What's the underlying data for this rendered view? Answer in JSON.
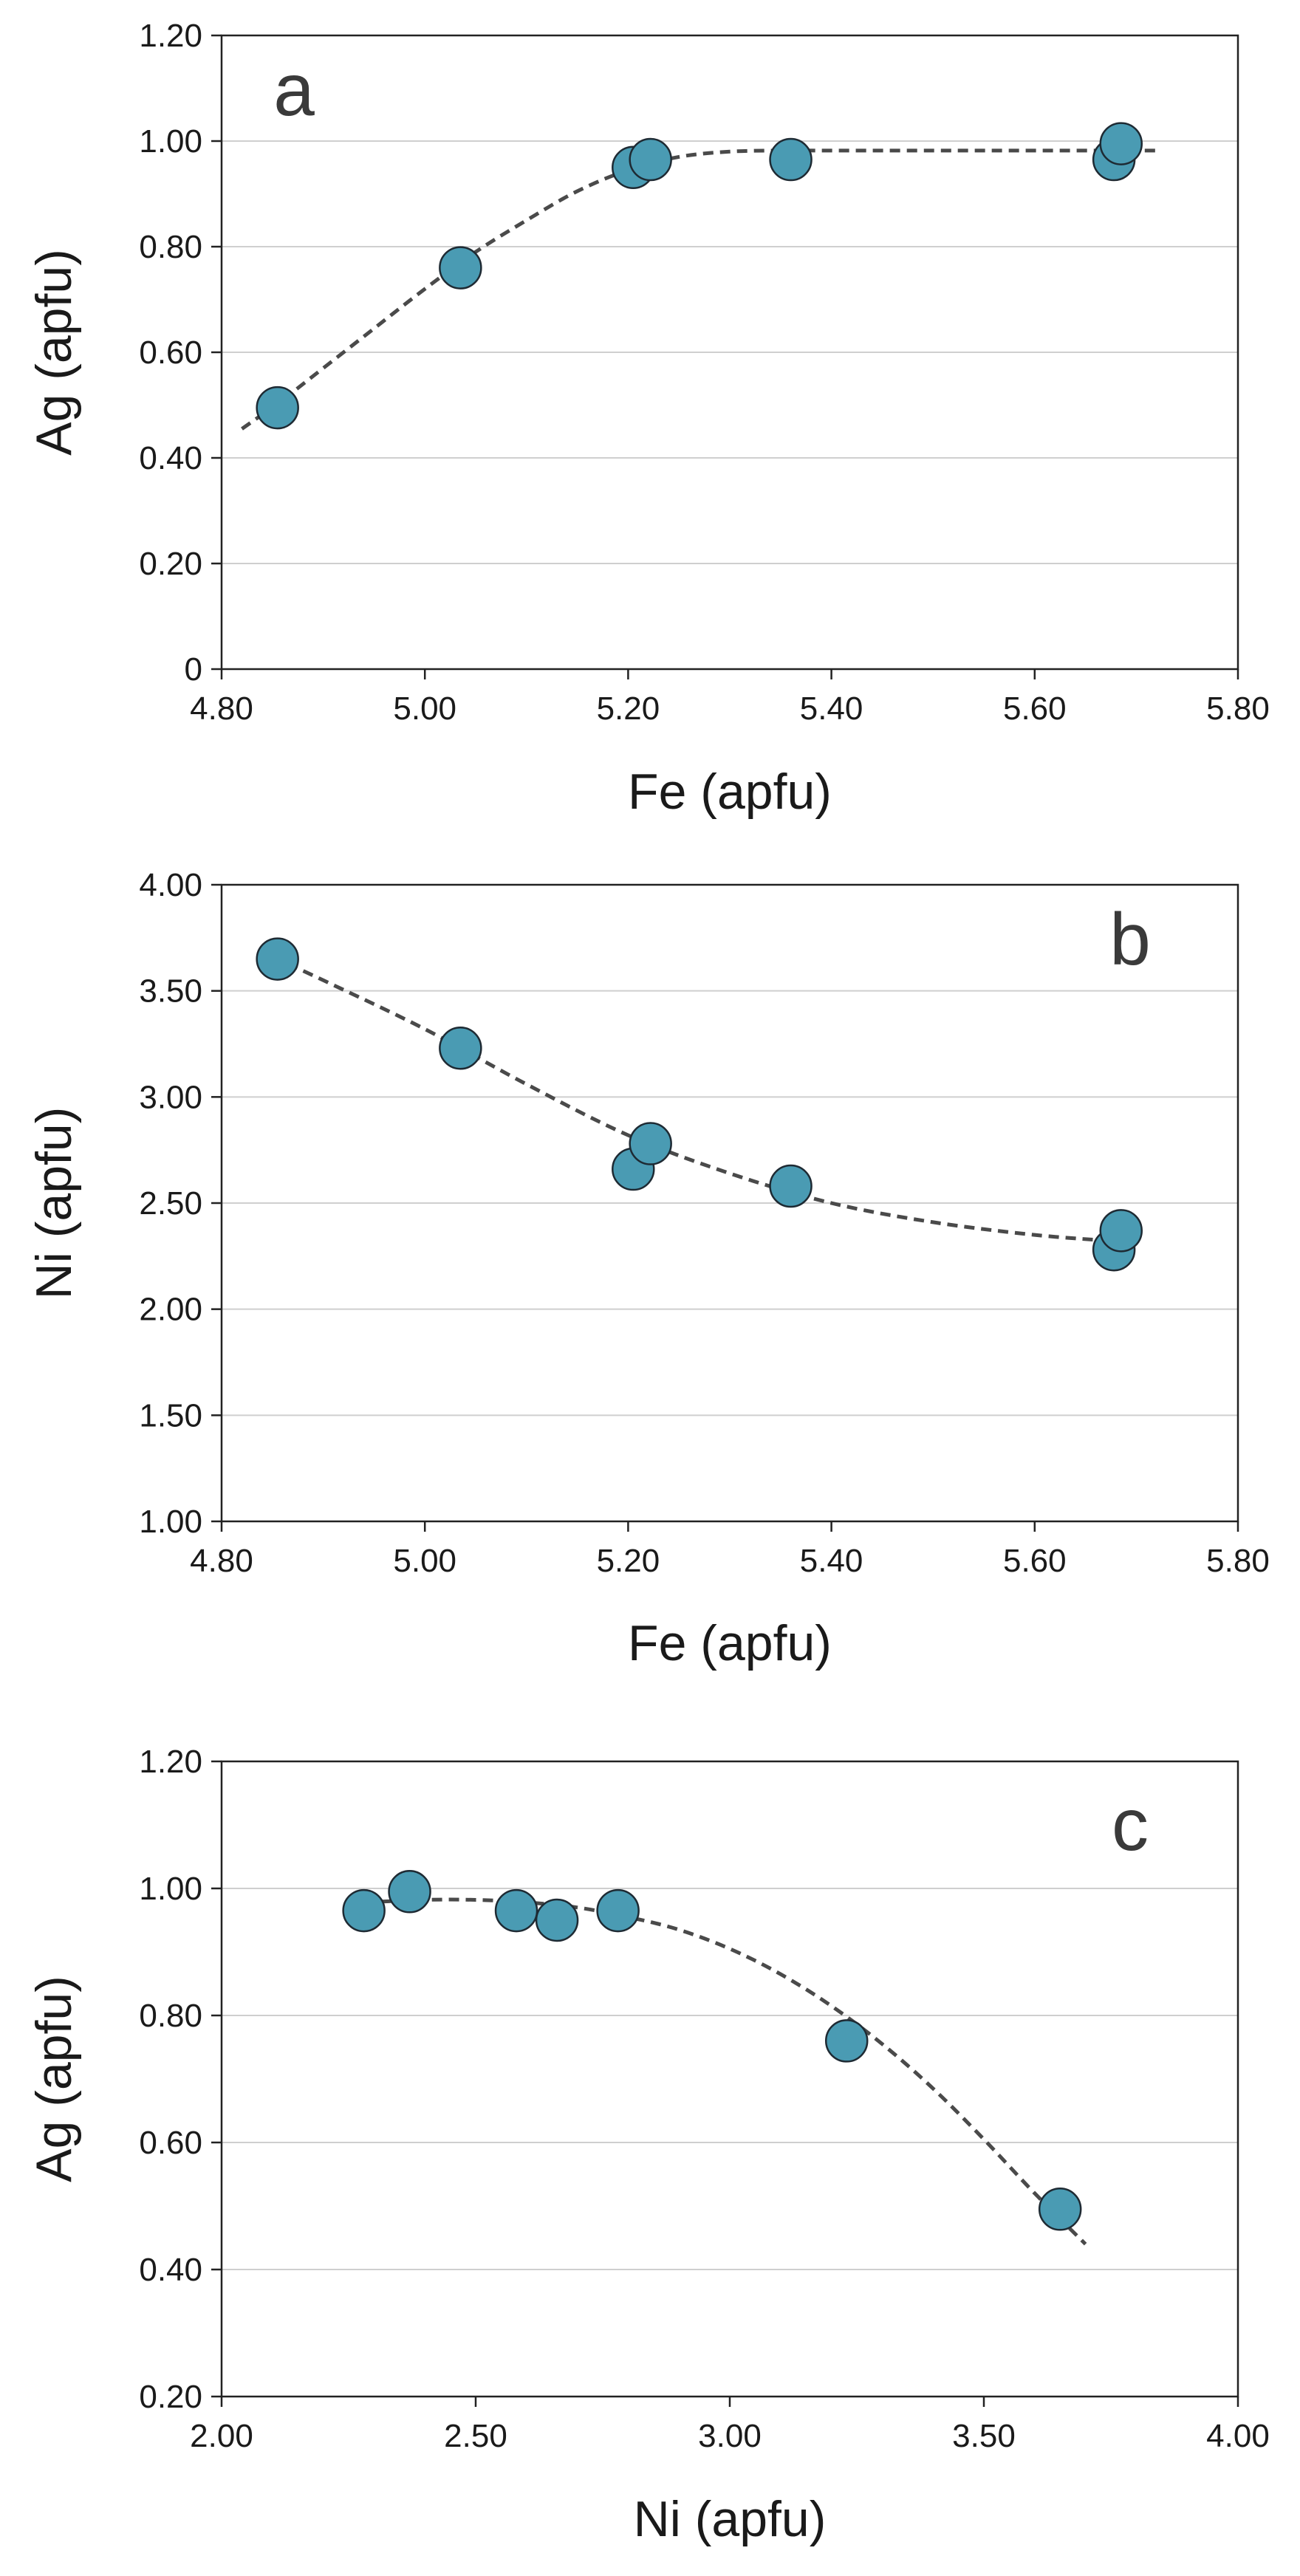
{
  "chart_data": [
    {
      "type": "scatter",
      "panel_label": "a",
      "xlabel": "Fe (apfu)",
      "ylabel": "Ag (apfu)",
      "xlim": [
        4.8,
        5.8
      ],
      "ylim": [
        0,
        1.2
      ],
      "x_ticks": [
        4.8,
        5.0,
        5.2,
        5.4,
        5.6,
        5.8
      ],
      "y_ticks": [
        0,
        0.2,
        0.4,
        0.6,
        0.8,
        1.0,
        1.2
      ],
      "x_tick_labels": [
        "4.80",
        "5.00",
        "5.20",
        "5.40",
        "5.60",
        "5.80"
      ],
      "y_tick_labels": [
        "0",
        "0.20",
        "0.40",
        "0.60",
        "0.80",
        "1.00",
        "1.20"
      ],
      "grid": "horizontal",
      "series": [
        {
          "name": "data",
          "x": [
            4.855,
            5.035,
            5.205,
            5.222,
            5.36,
            5.678,
            5.685
          ],
          "y": [
            0.495,
            0.76,
            0.95,
            0.965,
            0.965,
            0.965,
            0.995
          ]
        }
      ],
      "trendline": {
        "style": "dashed",
        "x": [
          4.82,
          4.86,
          4.9,
          4.95,
          5.0,
          5.05,
          5.1,
          5.15,
          5.2,
          5.25,
          5.3,
          5.35,
          5.4,
          5.5,
          5.6,
          5.72
        ],
        "y": [
          0.455,
          0.51,
          0.57,
          0.645,
          0.72,
          0.79,
          0.85,
          0.905,
          0.945,
          0.97,
          0.98,
          0.982,
          0.982,
          0.982,
          0.982,
          0.982
        ]
      }
    },
    {
      "type": "scatter",
      "panel_label": "b",
      "xlabel": "Fe (apfu)",
      "ylabel": "Ni (apfu)",
      "xlim": [
        4.8,
        5.8
      ],
      "ylim": [
        1.0,
        4.0
      ],
      "x_ticks": [
        4.8,
        5.0,
        5.2,
        5.4,
        5.6,
        5.8
      ],
      "y_ticks": [
        1.0,
        1.5,
        2.0,
        2.5,
        3.0,
        3.5,
        4.0
      ],
      "x_tick_labels": [
        "4.80",
        "5.00",
        "5.20",
        "5.40",
        "5.60",
        "5.80"
      ],
      "y_tick_labels": [
        "1.00",
        "1.50",
        "2.00",
        "2.50",
        "3.00",
        "3.50",
        "4.00"
      ],
      "grid": "horizontal",
      "series": [
        {
          "name": "data",
          "x": [
            4.855,
            5.035,
            5.205,
            5.222,
            5.36,
            5.678,
            5.685
          ],
          "y": [
            3.65,
            3.23,
            2.66,
            2.78,
            2.58,
            2.28,
            2.37
          ]
        }
      ],
      "trendline": {
        "style": "dashed",
        "x": [
          4.85,
          4.9,
          5.0,
          5.1,
          5.2,
          5.3,
          5.4,
          5.5,
          5.6,
          5.68
        ],
        "y": [
          3.66,
          3.55,
          3.32,
          3.06,
          2.82,
          2.64,
          2.5,
          2.41,
          2.35,
          2.32
        ]
      }
    },
    {
      "type": "scatter",
      "panel_label": "c",
      "xlabel": "Ni (apfu)",
      "ylabel": "Ag (apfu)",
      "xlim": [
        2.0,
        4.0
      ],
      "ylim": [
        0.2,
        1.2
      ],
      "x_ticks": [
        2.0,
        2.5,
        3.0,
        3.5,
        4.0
      ],
      "y_ticks": [
        0.2,
        0.4,
        0.6,
        0.8,
        1.0,
        1.2
      ],
      "x_tick_labels": [
        "2.00",
        "2.50",
        "3.00",
        "3.50",
        "4.00"
      ],
      "y_tick_labels": [
        "0.20",
        "0.40",
        "0.60",
        "0.80",
        "1.00",
        "1.20"
      ],
      "grid": "horizontal",
      "series": [
        {
          "name": "data",
          "x": [
            2.28,
            2.37,
            2.58,
            2.66,
            2.78,
            3.23,
            3.65
          ],
          "y": [
            0.965,
            0.995,
            0.965,
            0.95,
            0.965,
            0.76,
            0.495
          ]
        }
      ],
      "trendline": {
        "style": "dashed",
        "x": [
          2.28,
          2.4,
          2.5,
          2.6,
          2.7,
          2.8,
          2.9,
          3.0,
          3.1,
          3.2,
          3.3,
          3.4,
          3.5,
          3.6,
          3.7
        ],
        "y": [
          0.978,
          0.982,
          0.982,
          0.978,
          0.97,
          0.955,
          0.935,
          0.905,
          0.865,
          0.815,
          0.755,
          0.685,
          0.605,
          0.52,
          0.44
        ]
      }
    }
  ],
  "style": {
    "marker_fill": "#4a9bb3",
    "marker_stroke": "#1e2a33",
    "trend_color": "#4a4a4a",
    "grid_color": "#cfcfcf",
    "axis_color": "#222222",
    "text_color": "#1a1a1a",
    "letter_color": "#3a3a3a"
  }
}
